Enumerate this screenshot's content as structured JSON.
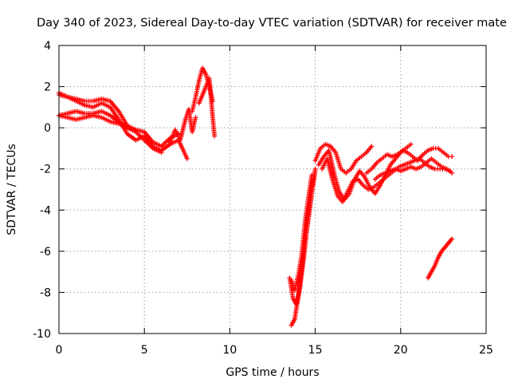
{
  "chart_data": {
    "type": "scatter",
    "title": "Day 340 of 2023, Sidereal Day-to-day VTEC variation (SDTVAR) for receiver mate",
    "xlabel": "GPS time / hours",
    "ylabel": "SDTVAR / TECUs",
    "xlim": [
      0,
      25
    ],
    "ylim": [
      -10,
      4
    ],
    "xticks": [
      0,
      5,
      10,
      15,
      20,
      25
    ],
    "yticks": [
      -10,
      -8,
      -6,
      -4,
      -2,
      0,
      2,
      4
    ],
    "grid": true,
    "marker": "+",
    "color": "#ff0000",
    "series": [
      {
        "x": [
          0.0,
          0.5,
          1.0,
          1.5,
          2.0,
          2.5,
          3.0,
          3.5,
          4.0,
          4.5,
          5.0,
          5.5,
          6.0,
          6.5,
          7.0,
          7.5
        ],
        "y": [
          1.7,
          1.5,
          1.3,
          1.1,
          1.0,
          1.2,
          1.0,
          0.4,
          -0.3,
          -0.6,
          -0.4,
          -0.9,
          -1.1,
          -0.8,
          -0.6,
          -1.5
        ]
      },
      {
        "x": [
          0.0,
          0.5,
          1.0,
          1.5,
          2.0,
          2.5,
          3.0,
          3.5,
          4.0,
          4.5,
          5.0,
          5.5,
          6.0,
          6.5,
          7.0
        ],
        "y": [
          1.6,
          1.5,
          1.4,
          1.3,
          1.3,
          1.4,
          1.3,
          0.8,
          0.1,
          -0.1,
          -0.2,
          -0.7,
          -0.9,
          -0.5,
          -0.3
        ]
      },
      {
        "x": [
          0.0,
          0.5,
          1.0,
          1.5,
          2.0,
          2.5,
          3.0,
          3.5,
          4.0,
          4.5,
          5.0,
          5.5,
          6.0
        ],
        "y": [
          0.6,
          0.5,
          0.4,
          0.5,
          0.6,
          0.5,
          0.3,
          0.2,
          0.0,
          -0.2,
          -0.6,
          -1.0,
          -1.2
        ]
      },
      {
        "x": [
          0.0,
          0.5,
          1.0,
          1.5,
          2.0,
          2.5,
          3.0,
          3.5,
          4.0,
          4.5
        ],
        "y": [
          0.6,
          0.7,
          0.8,
          0.7,
          0.7,
          0.8,
          0.6,
          0.3,
          0.0,
          -0.1
        ]
      },
      {
        "x": [
          6.5,
          6.8,
          7.1,
          7.4,
          7.6,
          7.8,
          8.0
        ],
        "y": [
          -0.7,
          -0.1,
          -0.6,
          0.4,
          0.9,
          -0.2,
          0.5
        ]
      },
      {
        "x": [
          7.8,
          8.0,
          8.2,
          8.4,
          8.6,
          8.8,
          9.0
        ],
        "y": [
          0.8,
          1.5,
          2.3,
          2.9,
          2.6,
          2.0,
          1.3
        ]
      },
      {
        "x": [
          8.2,
          8.4,
          8.6,
          8.8,
          9.0,
          9.1
        ],
        "y": [
          1.2,
          1.6,
          2.0,
          2.4,
          0.5,
          -0.4
        ]
      },
      {
        "x": [
          13.5,
          13.7,
          13.9,
          14.1,
          14.3,
          14.5,
          14.7,
          14.9,
          15.0
        ],
        "y": [
          -7.3,
          -8.3,
          -8.6,
          -7.8,
          -6.5,
          -5.0,
          -3.8,
          -2.5,
          -2.0
        ]
      },
      {
        "x": [
          13.6,
          13.8,
          14.0,
          14.2,
          14.4,
          14.6,
          14.8,
          15.0
        ],
        "y": [
          -9.6,
          -9.3,
          -8.2,
          -6.9,
          -5.6,
          -4.3,
          -3.1,
          -2.1
        ]
      },
      {
        "x": [
          13.6,
          13.8,
          14.0,
          14.2,
          14.4,
          14.6,
          14.8
        ],
        "y": [
          -7.4,
          -7.9,
          -7.2,
          -6.2,
          -4.6,
          -3.4,
          -2.3
        ]
      },
      {
        "x": [
          15.0,
          15.3,
          15.6,
          15.9,
          16.2,
          16.5,
          16.8,
          17.1,
          17.4,
          17.7,
          18.0,
          18.3
        ],
        "y": [
          -1.6,
          -1.0,
          -0.8,
          -0.9,
          -1.2,
          -2.0,
          -2.2,
          -2.0,
          -1.6,
          -1.4,
          -1.2,
          -0.9
        ]
      },
      {
        "x": [
          15.2,
          15.5,
          15.8,
          16.1,
          16.4,
          16.7,
          17.0,
          17.3,
          17.6,
          17.9,
          18.2,
          18.5,
          18.8,
          19.1,
          19.4,
          19.7,
          20.0,
          20.3,
          20.6
        ],
        "y": [
          -1.8,
          -1.4,
          -1.1,
          -2.2,
          -3.1,
          -3.5,
          -3.2,
          -2.5,
          -2.1,
          -2.4,
          -2.9,
          -3.2,
          -2.8,
          -2.3,
          -1.8,
          -1.5,
          -1.2,
          -1.0,
          -0.8
        ]
      },
      {
        "x": [
          15.4,
          15.7,
          16.0,
          16.3,
          16.6,
          16.9,
          17.2,
          17.5,
          17.8,
          18.1,
          18.4,
          18.7,
          19.0,
          19.3,
          19.6,
          19.9,
          20.2,
          20.5,
          20.8,
          21.1,
          21.4,
          21.7,
          22.0,
          22.3,
          22.6,
          22.9
        ],
        "y": [
          -2.0,
          -1.5,
          -2.5,
          -3.3,
          -3.6,
          -3.1,
          -2.6,
          -2.5,
          -2.8,
          -3.0,
          -2.9,
          -2.7,
          -2.5,
          -2.3,
          -2.1,
          -1.9,
          -1.8,
          -1.7,
          -1.6,
          -1.5,
          -1.7,
          -1.9,
          -2.0,
          -2.0,
          -2.0,
          -2.1
        ]
      },
      {
        "x": [
          18.0,
          18.3,
          18.6,
          18.9,
          19.2,
          19.5,
          19.8,
          20.1,
          20.4,
          20.7,
          21.0,
          21.3,
          21.6,
          21.9,
          22.2,
          22.5,
          22.8,
          23.0
        ],
        "y": [
          -2.2,
          -2.0,
          -1.7,
          -1.5,
          -1.3,
          -1.4,
          -1.3,
          -1.1,
          -1.2,
          -1.4,
          -1.6,
          -1.3,
          -1.1,
          -1.0,
          -1.0,
          -1.2,
          -1.4,
          -1.4
        ]
      },
      {
        "x": [
          18.5,
          18.8,
          19.1,
          19.4,
          19.7,
          20.0,
          20.3,
          20.6,
          20.9,
          21.2,
          21.5,
          21.8,
          22.1,
          22.4,
          22.7,
          23.0
        ],
        "y": [
          -2.5,
          -2.3,
          -2.2,
          -2.1,
          -2.0,
          -2.1,
          -2.0,
          -1.9,
          -2.0,
          -1.9,
          -1.7,
          -1.5,
          -1.7,
          -1.9,
          -2.0,
          -2.2
        ]
      },
      {
        "x": [
          21.6,
          21.8,
          22.0,
          22.2,
          22.4,
          22.6,
          22.8,
          23.0
        ],
        "y": [
          -7.3,
          -7.0,
          -6.7,
          -6.3,
          -6.0,
          -5.8,
          -5.6,
          -5.4
        ]
      }
    ]
  }
}
